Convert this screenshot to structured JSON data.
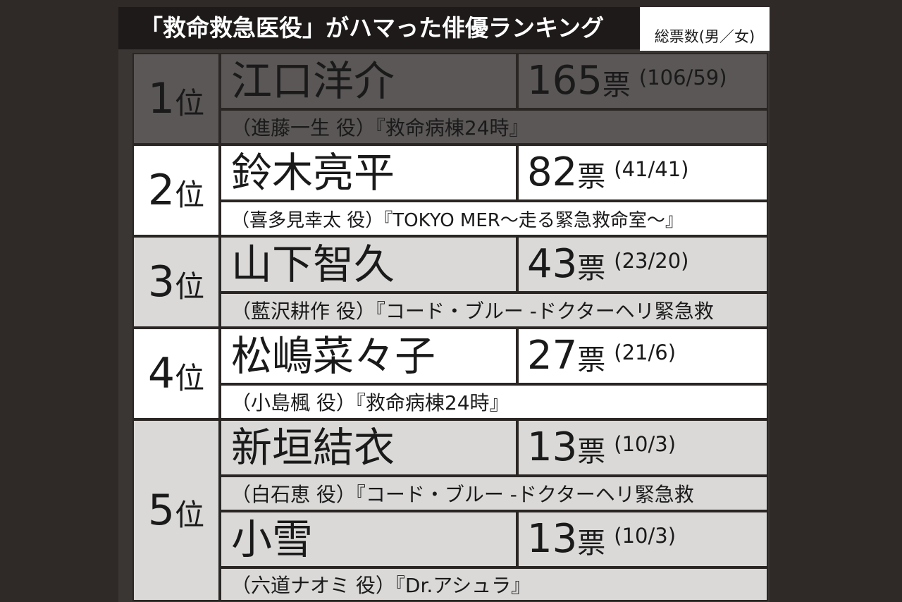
{
  "title": "「救命救急医役」がハマった俳優ランキング",
  "votes_header": "総票数(男／女)",
  "vote_unit": "票",
  "rank_suffix": "位",
  "rankings": [
    {
      "rank": "1",
      "name": "江口洋介",
      "votes": "165",
      "split": "(106/59)",
      "role": "（進藤一生 役）『救命病棟24時』"
    },
    {
      "rank": "2",
      "name": "鈴木亮平",
      "votes": "82",
      "split": "(41/41)",
      "role": "（喜多見幸太 役）『TOKYO MER〜走る緊急救命室〜』"
    },
    {
      "rank": "3",
      "name": "山下智久",
      "votes": "43",
      "split": "(23/20)",
      "role": "（藍沢耕作 役）『コード・ブルー -ドクターヘリ緊急救"
    },
    {
      "rank": "4",
      "name": "松嶋菜々子",
      "votes": "27",
      "split": "(21/6)",
      "role": "（小島楓 役）『救命病棟24時』"
    },
    {
      "rank": "5",
      "name": "新垣結衣",
      "votes": "13",
      "split": "(10/3)",
      "role": "（白石恵 役）『コード・ブルー -ドクターヘリ緊急救"
    },
    {
      "rank": "5",
      "name": "小雪",
      "votes": "13",
      "split": "(10/3)",
      "role": "（六道ナオミ 役）『Dr.アシュラ』"
    }
  ],
  "colors": {
    "top_row": "#5a5756",
    "alt_row": "#dad9d8",
    "white_row": "#ffffff",
    "title_bg": "#1e1a19"
  }
}
